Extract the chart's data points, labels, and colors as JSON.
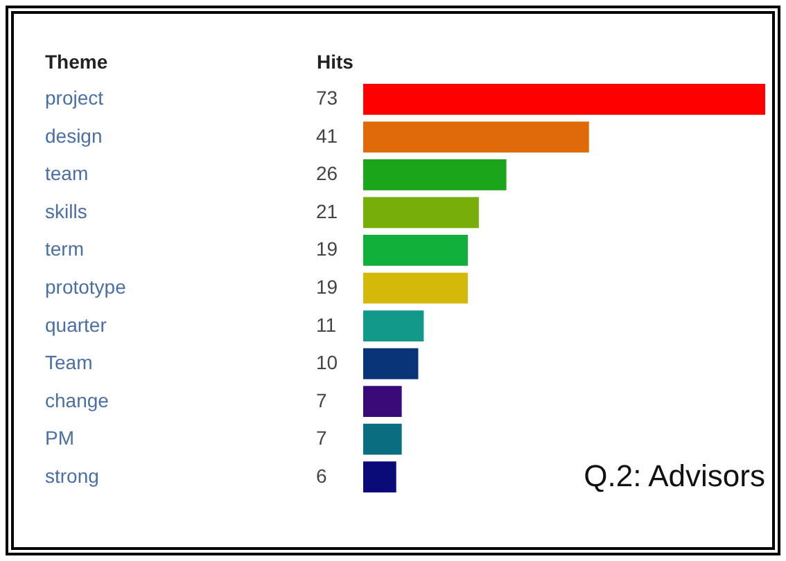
{
  "chart_data": {
    "type": "bar",
    "orientation": "horizontal",
    "title": "Q.2: Advisors",
    "ylabel": "Theme",
    "xlabel": "Hits",
    "categories": [
      "project",
      "design",
      "team",
      "skills",
      "term",
      "prototype",
      "quarter",
      "Team",
      "change",
      "PM",
      "strong"
    ],
    "values": [
      73,
      41,
      26,
      21,
      19,
      19,
      11,
      10,
      7,
      7,
      6
    ],
    "colors": [
      "#ff0000",
      "#e0690a",
      "#1aa51a",
      "#78ae0a",
      "#10b03a",
      "#d4b80a",
      "#13998a",
      "#0a3478",
      "#3a0a78",
      "#0a6e80",
      "#0a0a78"
    ],
    "data_labels": true
  }
}
